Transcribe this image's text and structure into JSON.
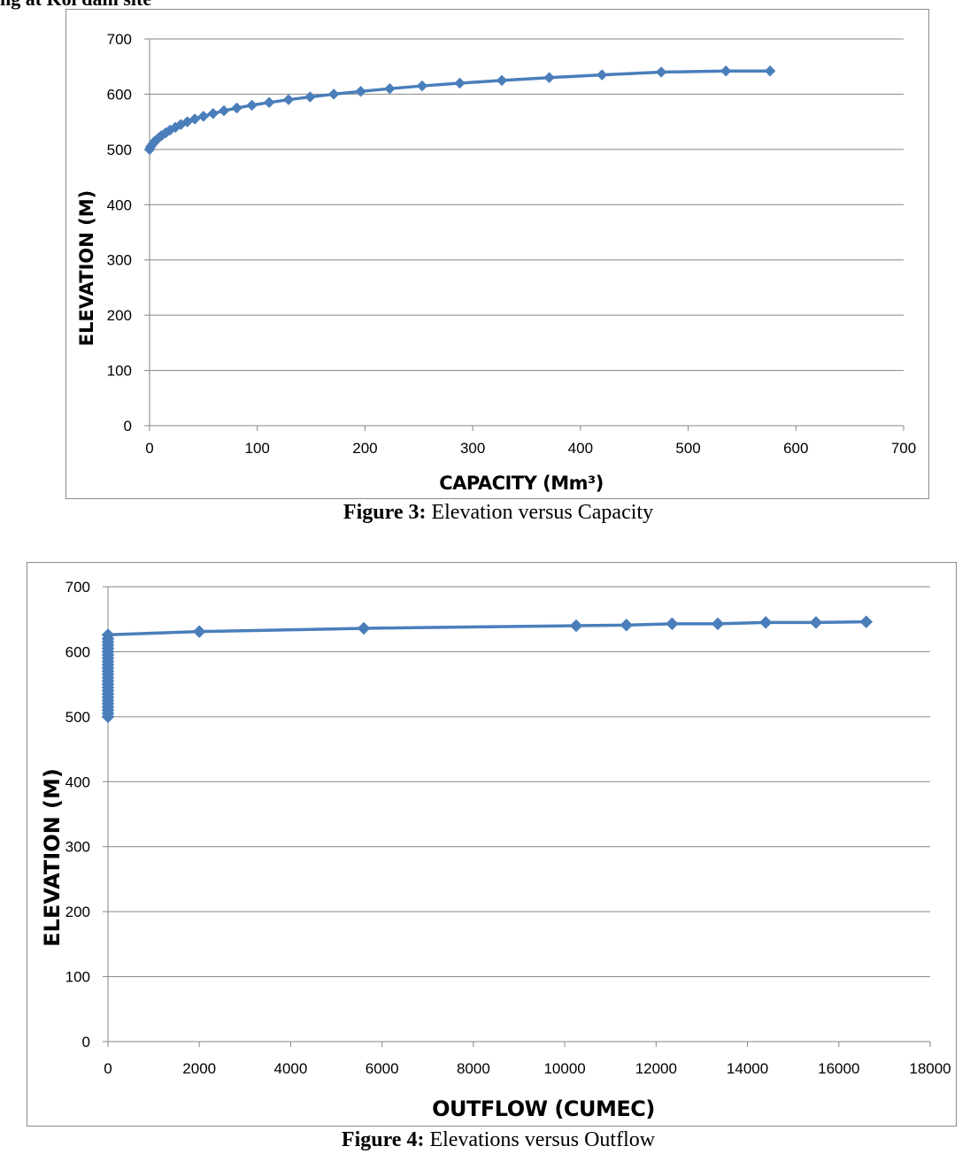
{
  "page": {
    "top_fragment": "ng at Kol dam site"
  },
  "figures": [
    {
      "caption_label": "Figure 3:",
      "caption_text": " Elevation versus Capacity"
    },
    {
      "caption_label": "Figure 4:",
      "caption_text": " Elevations versus Outflow"
    }
  ],
  "colors": {
    "series": "#4a7ebb",
    "grid": "#868686",
    "axis": "#868686"
  },
  "chart_data": [
    {
      "type": "line",
      "title": "",
      "xlabel": "CAPACITY (Mm³)",
      "ylabel": "ELEVATION (M)",
      "xlim": [
        0,
        700
      ],
      "ylim": [
        0,
        700
      ],
      "xticks": [
        0,
        100,
        200,
        300,
        400,
        500,
        600,
        700
      ],
      "yticks": [
        0,
        100,
        200,
        300,
        400,
        500,
        600,
        700
      ],
      "grid": "horizontal",
      "marker": "diamond",
      "x": [
        0,
        1,
        3,
        5,
        8,
        11,
        15,
        19,
        24,
        29,
        35,
        42,
        50,
        59,
        69,
        81,
        95,
        111,
        129,
        149,
        171,
        196,
        223,
        253,
        288,
        327,
        371,
        420,
        475,
        535,
        576
      ],
      "y": [
        500,
        505,
        510,
        515,
        520,
        525,
        530,
        535,
        540,
        545,
        550,
        555,
        560,
        565,
        570,
        575,
        580,
        585,
        590,
        595,
        600,
        605,
        610,
        615,
        620,
        625,
        630,
        635,
        640,
        642,
        642
      ]
    },
    {
      "type": "line",
      "title": "",
      "xlabel": "OUTFLOW (CUMEC)",
      "ylabel": "ELEVATION (M)",
      "xlim": [
        0,
        18000
      ],
      "ylim": [
        0,
        700
      ],
      "xticks": [
        0,
        2000,
        4000,
        6000,
        8000,
        10000,
        12000,
        14000,
        16000,
        18000
      ],
      "yticks": [
        0,
        100,
        200,
        300,
        400,
        500,
        600,
        700
      ],
      "grid": "horizontal",
      "marker": "diamond",
      "x": [
        0,
        0,
        0,
        0,
        0,
        0,
        0,
        0,
        0,
        0,
        0,
        0,
        0,
        0,
        0,
        0,
        0,
        0,
        0,
        0,
        0,
        0,
        0,
        0,
        0,
        0,
        2000,
        5600,
        10250,
        11350,
        12350,
        13350,
        14400,
        15500,
        16600
      ],
      "y": [
        500,
        505,
        510,
        515,
        520,
        525,
        530,
        535,
        540,
        545,
        550,
        555,
        560,
        565,
        570,
        575,
        580,
        585,
        590,
        595,
        600,
        605,
        610,
        615,
        620,
        626,
        631,
        636,
        640,
        641,
        643,
        643,
        645,
        645,
        646
      ]
    }
  ]
}
